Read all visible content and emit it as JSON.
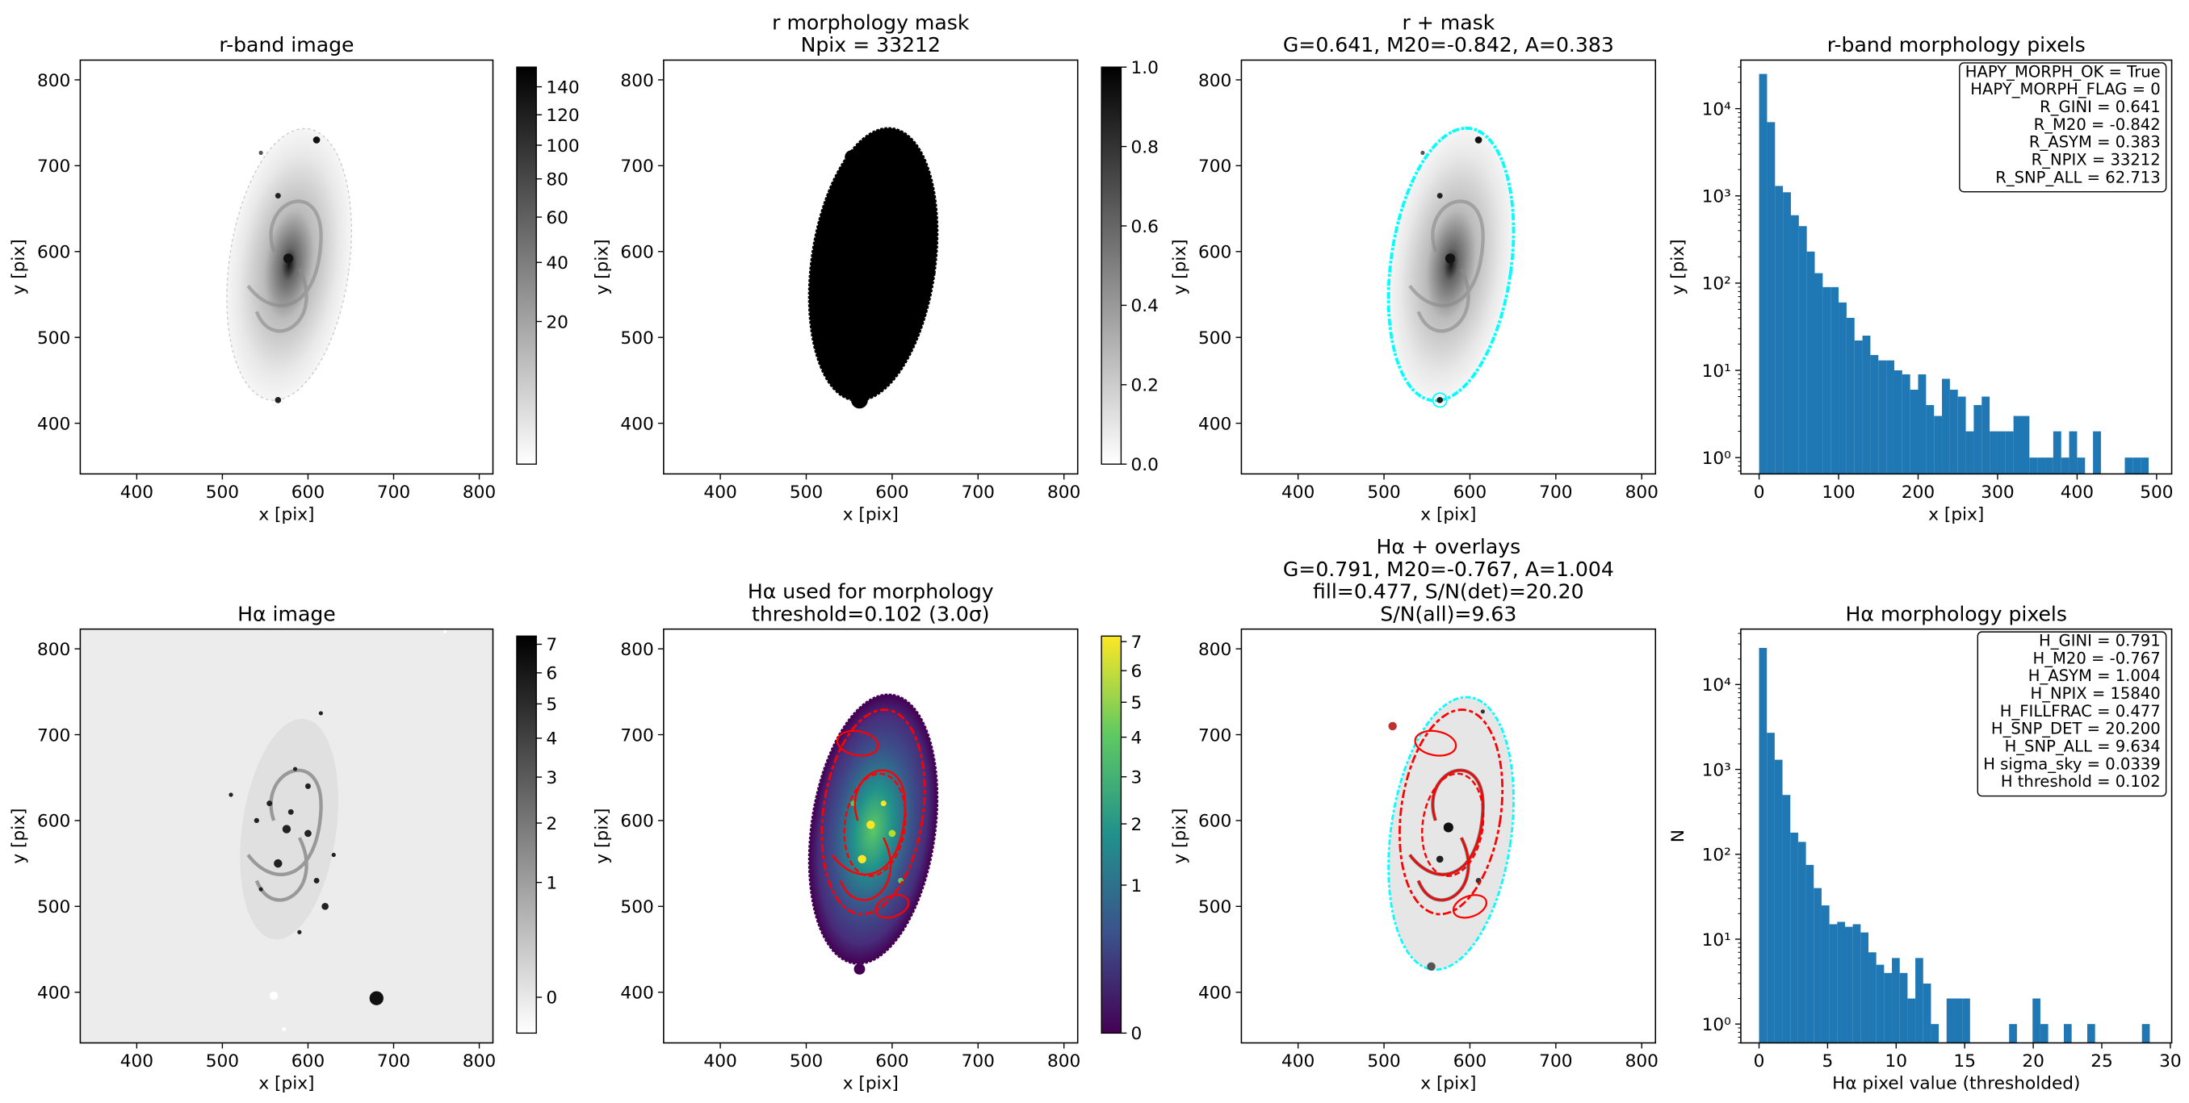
{
  "chart_data": [
    {
      "type": "image",
      "title": [
        "r-band image"
      ],
      "x_label": "x [pix]",
      "y_label": "y [pix]",
      "xlim": [
        334,
        816
      ],
      "ylim": [
        341,
        823
      ],
      "xticks": [
        400,
        500,
        600,
        700,
        800
      ],
      "yticks": [
        400,
        500,
        600,
        700,
        800
      ],
      "colorbar": {
        "cmap": "gray_r",
        "scale": "sqrt",
        "clim": [
          0,
          155
        ],
        "ticks": [
          20,
          40,
          60,
          80,
          100,
          120,
          140
        ]
      }
    },
    {
      "type": "image",
      "title": [
        "r morphology mask",
        "Npix = 33212"
      ],
      "x_label": "x [pix]",
      "y_label": "y [pix]",
      "xlim": [
        334,
        816
      ],
      "ylim": [
        341,
        823
      ],
      "xticks": [
        400,
        500,
        600,
        700,
        800
      ],
      "yticks": [
        400,
        500,
        600,
        700,
        800
      ],
      "colorbar": {
        "cmap": "gray_r",
        "scale": "linear",
        "clim": [
          0,
          1
        ],
        "ticks": [
          {
            "value": 0,
            "label": "0.0"
          },
          0.2,
          0.4,
          0.6,
          0.8,
          {
            "value": 1,
            "label": "1.0"
          }
        ]
      }
    },
    {
      "type": "image",
      "title": [
        "r + mask",
        "G=0.641, M20=-0.842, A=0.383"
      ],
      "x_label": "x [pix]",
      "y_label": "y [pix]",
      "xlim": [
        334,
        816
      ],
      "ylim": [
        341,
        823
      ],
      "xticks": [
        400,
        500,
        600,
        700,
        800
      ],
      "yticks": [
        400,
        500,
        600,
        700,
        800
      ]
    },
    {
      "type": "histogram",
      "title": [
        "r-band morphology pixels"
      ],
      "x_label": "x [pix]",
      "y_label": "y [pix]",
      "log_y": true,
      "color": "#1f77b4",
      "xlim": [
        -23,
        519
      ],
      "ylim": [
        0.65,
        36000
      ],
      "xticks": [
        0,
        100,
        200,
        300,
        400,
        500
      ],
      "yticks": [
        {
          "value": 1,
          "label": "10⁰"
        },
        {
          "value": 10,
          "label": "10¹"
        },
        {
          "value": 100,
          "label": "10²"
        },
        {
          "value": 1000,
          "label": "10³"
        },
        {
          "value": 10000,
          "label": "10⁴"
        }
      ],
      "bins": [
        0,
        10,
        20,
        30,
        40,
        50,
        60,
        70,
        80,
        90,
        100,
        110,
        120,
        130,
        140,
        150,
        160,
        170,
        180,
        190,
        200,
        210,
        220,
        230,
        240,
        250,
        260,
        270,
        280,
        290,
        300,
        310,
        320,
        330,
        340,
        350,
        360,
        370,
        380,
        390,
        400,
        410,
        420,
        430,
        440,
        450,
        460,
        470,
        480,
        490,
        500
      ],
      "counts": [
        25000,
        7000,
        1300,
        1100,
        600,
        450,
        230,
        130,
        90,
        90,
        60,
        40,
        22,
        25,
        15,
        13,
        13,
        10,
        9,
        6,
        9,
        4,
        3,
        8,
        6,
        5,
        2,
        4,
        5,
        2,
        2,
        2,
        3,
        3,
        1,
        1,
        1,
        2,
        1,
        2,
        1,
        0,
        2,
        0,
        0,
        0,
        1,
        1,
        1,
        0
      ],
      "annotation": [
        "HAPY_MORPH_OK = True",
        "HAPY_MORPH_FLAG = 0",
        "R_GINI = 0.641",
        "R_M20 = -0.842",
        "R_ASYM = 0.383",
        "R_NPIX = 33212",
        "R_SNP_ALL = 62.713"
      ]
    },
    {
      "type": "image",
      "title": [
        "Hα image"
      ],
      "x_label": "x [pix]",
      "y_label": "y [pix]",
      "xlim": [
        334,
        816
      ],
      "ylim": [
        341,
        823
      ],
      "xticks": [
        400,
        500,
        600,
        700,
        800
      ],
      "yticks": [
        400,
        500,
        600,
        700,
        800
      ],
      "colorbar": {
        "cmap": "gray_r",
        "scale": "sqrt",
        "clim": [
          -0.06,
          7.3
        ],
        "ticks": [
          0,
          1,
          2,
          3,
          4,
          5,
          6,
          7
        ]
      }
    },
    {
      "type": "image",
      "title": [
        "Hα used for morphology",
        "threshold=0.102 (3.0σ)"
      ],
      "x_label": "x [pix]",
      "y_label": "y [pix]",
      "xlim": [
        334,
        816
      ],
      "ylim": [
        341,
        823
      ],
      "xticks": [
        400,
        500,
        600,
        700,
        800
      ],
      "yticks": [
        400,
        500,
        600,
        700,
        800
      ],
      "colorbar": {
        "cmap": "viridis",
        "scale": "sqrt",
        "clim": [
          0,
          7.2
        ],
        "ticks": [
          0,
          1,
          2,
          3,
          4,
          5,
          6,
          7
        ]
      }
    },
    {
      "type": "image",
      "title": [
        "Hα + overlays",
        "G=0.791, M20=-0.767, A=1.004",
        "fill=0.477, S/N(det)=20.20",
        "S/N(all)=9.63"
      ],
      "x_label": "x [pix]",
      "y_label": "y [pix]",
      "xlim": [
        334,
        816
      ],
      "ylim": [
        341,
        823
      ],
      "xticks": [
        400,
        500,
        600,
        700,
        800
      ],
      "yticks": [
        400,
        500,
        600,
        700,
        800
      ]
    },
    {
      "type": "histogram",
      "title": [
        "Hα morphology pixels"
      ],
      "x_label": "Hα pixel value (thresholded)",
      "y_label": "N",
      "log_y": true,
      "color": "#1f77b4",
      "xlim": [
        -1.33,
        30.1
      ],
      "ylim": [
        0.6,
        45000
      ],
      "xticks": [
        0,
        5,
        10,
        15,
        20,
        25,
        30
      ],
      "yticks": [
        {
          "value": 1,
          "label": "10⁰"
        },
        {
          "value": 10,
          "label": "10¹"
        },
        {
          "value": 100,
          "label": "10²"
        },
        {
          "value": 1000,
          "label": "10³"
        },
        {
          "value": 10000,
          "label": "10⁴"
        }
      ],
      "bins": [
        0,
        0.57,
        1.14,
        1.71,
        2.28,
        2.85,
        3.42,
        3.99,
        4.56,
        5.13,
        5.7,
        6.27,
        6.84,
        7.41,
        7.98,
        8.55,
        9.12,
        9.69,
        10.26,
        10.83,
        11.4,
        11.97,
        12.54,
        13.11,
        13.68,
        14.25,
        14.82,
        15.39,
        15.96,
        16.53,
        17.1,
        17.67,
        18.24,
        18.81,
        19.38,
        19.95,
        20.52,
        21.09,
        21.66,
        22.23,
        22.8,
        23.37,
        23.94,
        24.51,
        25.08,
        25.65,
        26.22,
        26.79,
        27.36,
        27.93,
        28.5
      ],
      "counts": [
        27000,
        2700,
        1300,
        500,
        180,
        140,
        75,
        40,
        25,
        15,
        16,
        14,
        15,
        12,
        7,
        5,
        4,
        6,
        4,
        2,
        6,
        3,
        1,
        0,
        2,
        2,
        2,
        0,
        0,
        0,
        0,
        0,
        1,
        0,
        0,
        2,
        1,
        0,
        0,
        1,
        0,
        0,
        1,
        0,
        0,
        0,
        0,
        0,
        0,
        1
      ],
      "annotation": [
        "H_GINI = 0.791",
        "H_M20 = -0.767",
        "H_ASYM = 1.004",
        "H_NPIX = 15840",
        "H_FILLFRAC = 0.477",
        "H_SNP_DET = 20.200",
        "H_SNP_ALL = 9.634",
        "H sigma_sky = 0.0339",
        "H threshold = 0.102"
      ]
    }
  ]
}
